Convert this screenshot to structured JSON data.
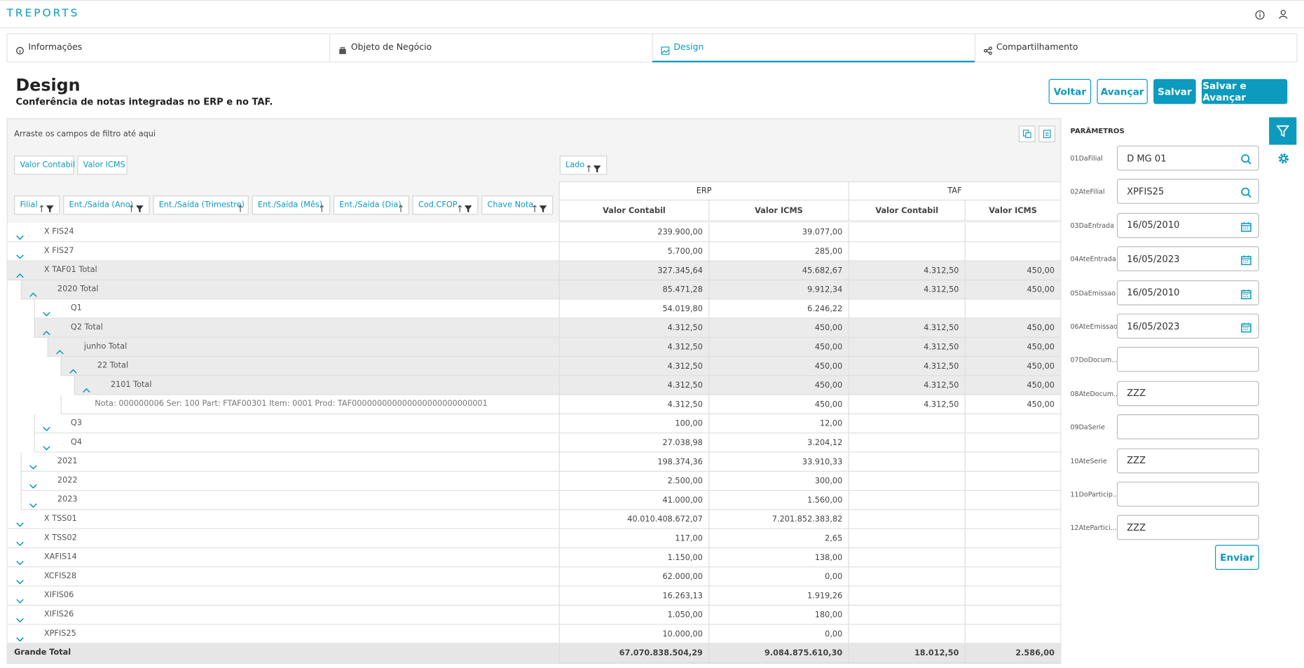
{
  "header": {
    "app": "TREPORTS"
  },
  "tabs": [
    "Informações",
    "Objeto de Negócio",
    "Design",
    "Compartilhamento"
  ],
  "page": {
    "title": "Design",
    "subtitle": "Conferência de notas integradas no ERP e no TAF."
  },
  "buttons": [
    "Voltar",
    "Avançar",
    "Salvar",
    "Salvar e Avançar"
  ],
  "pivot": {
    "drop_hint": "Arraste os campos de filtro até aqui",
    "data_fields": [
      "Valor Contabil",
      "Valor ICMS"
    ],
    "column_fields": [
      "Lado"
    ],
    "row_fields": [
      "Filial",
      "Ent./Saída (Ano)",
      "Ent./Saída (Trimestre)",
      "Ent./Saída (Mês)",
      "Ent./Saída (Dia)",
      "Cod.CFOP",
      "Chave Nota"
    ],
    "column_groups": [
      "ERP",
      "TAF"
    ],
    "measures": [
      "Valor Contabil",
      "Valor ICMS",
      "Valor Contabil",
      "Valor ICMS"
    ],
    "rows": [
      {
        "label": "X FIS24",
        "cells": [
          "239.900,00",
          "39.077,00",
          null,
          null
        ]
      },
      {
        "label": "X FIS27",
        "cells": [
          "5.700,00",
          "285,00",
          null,
          null
        ]
      },
      {
        "label": "X TAF01 Total",
        "cells": [
          "327.345,64",
          "45.682,67",
          "4.312,50",
          "450,00"
        ]
      },
      {
        "label": "2020 Total",
        "cells": [
          "85.471,28",
          "9.912,34",
          "4.312,50",
          "450,00"
        ]
      },
      {
        "label": "Q1",
        "cells": [
          "54.019,80",
          "6.246,22",
          null,
          null
        ]
      },
      {
        "label": "Q2 Total",
        "cells": [
          "4.312,50",
          "450,00",
          "4.312,50",
          "450,00"
        ]
      },
      {
        "label": "junho Total",
        "cells": [
          "4.312,50",
          "450,00",
          "4.312,50",
          "450,00"
        ]
      },
      {
        "label": "22 Total",
        "cells": [
          "4.312,50",
          "450,00",
          "4.312,50",
          "450,00"
        ]
      },
      {
        "label": "2101 Total",
        "cells": [
          "4.312,50",
          "450,00",
          "4.312,50",
          "450,00"
        ]
      },
      {
        "label": "Nota: 000000006 Ser: 100 Part: FTAF00301 Item: 0001 Prod: TAF000000000000000000000000001",
        "cells": [
          "4.312,50",
          "450,00",
          "4.312,50",
          "450,00"
        ]
      },
      {
        "label": "Q3",
        "cells": [
          "100,00",
          "12,00",
          null,
          null
        ]
      },
      {
        "label": "Q4",
        "cells": [
          "27.038,98",
          "3.204,12",
          null,
          null
        ]
      },
      {
        "label": "2021",
        "cells": [
          "198.374,36",
          "33.910,33",
          null,
          null
        ]
      },
      {
        "label": "2022",
        "cells": [
          "2.500,00",
          "300,00",
          null,
          null
        ]
      },
      {
        "label": "2023",
        "cells": [
          "41.000,00",
          "1.560,00",
          null,
          null
        ]
      },
      {
        "label": "X TSS01",
        "cells": [
          "40.010.408.672,07",
          "7.201.852.383,82",
          null,
          null
        ]
      },
      {
        "label": "X TSS02",
        "cells": [
          "117,00",
          "2,65",
          null,
          null
        ]
      },
      {
        "label": "XAFIS14",
        "cells": [
          "1.150,00",
          "138,00",
          null,
          null
        ]
      },
      {
        "label": "XCFIS28",
        "cells": [
          "62.000,00",
          "0,00",
          null,
          null
        ]
      },
      {
        "label": "XIFIS06",
        "cells": [
          "16.263,13",
          "1.919,26",
          null,
          null
        ]
      },
      {
        "label": "XIFIS26",
        "cells": [
          "1.050,00",
          "180,00",
          null,
          null
        ]
      },
      {
        "label": "XPFIS25",
        "cells": [
          "10.000,00",
          "0,00",
          null,
          null
        ]
      }
    ],
    "grand_total": {
      "label": "Grande Total",
      "cells": [
        "67.070.838.504,29",
        "9.084.875.610,30",
        "18.012,50",
        "2.586,00"
      ]
    }
  },
  "parameters": {
    "title": "PARÂMETROS",
    "fields": [
      {
        "label": "01DaFilial",
        "value": "D MG 01"
      },
      {
        "label": "02AteFilial",
        "value": "XPFIS25"
      },
      {
        "label": "03DaEntrada",
        "value": "16/05/2010"
      },
      {
        "label": "04AteEntrada",
        "value": "16/05/2023"
      },
      {
        "label": "05DaEmissao",
        "value": "16/05/2010"
      },
      {
        "label": "06AteEmissao",
        "value": "16/05/2023"
      },
      {
        "label": "07DoDocum...",
        "value": null
      },
      {
        "label": "08AteDocum...",
        "value": "ZZZ"
      },
      {
        "label": "09DaSerie",
        "value": null
      },
      {
        "label": "10AteSerie",
        "value": "ZZZ"
      },
      {
        "label": "11DoParticip...",
        "value": null
      },
      {
        "label": "12AtePartici...",
        "value": "ZZZ"
      }
    ],
    "submit": "Enviar"
  }
}
